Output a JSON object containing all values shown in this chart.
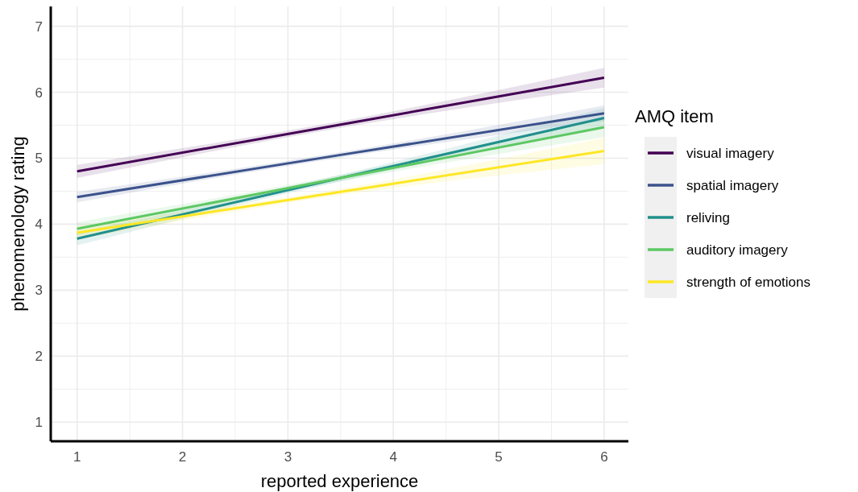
{
  "chart_data": {
    "type": "line",
    "xlabel": "reported experience",
    "ylabel": "phenomenology rating",
    "legend_title": "AMQ item",
    "legend": "right",
    "grid": true,
    "line_style": "solid",
    "marker": "none",
    "xlim": [
      0.75,
      6.23
    ],
    "ylim": [
      0.71,
      7.3
    ],
    "xticks": [
      {
        "value": 0.75,
        "label": null
      },
      {
        "value": 1.5,
        "label": null
      },
      1,
      2,
      {
        "value": 2.5,
        "label": null
      },
      3,
      {
        "value": 3.5,
        "label": null
      },
      4,
      {
        "value": 4.5,
        "label": null
      },
      5,
      {
        "value": 5.5,
        "label": null
      },
      6
    ],
    "yticks": [
      1,
      {
        "value": 1.5,
        "label": null
      },
      2,
      {
        "value": 2.5,
        "label": null
      },
      3,
      {
        "value": 3.5,
        "label": null
      },
      4,
      {
        "value": 4.5,
        "label": null
      },
      5,
      {
        "value": 5.5,
        "label": null
      },
      6,
      {
        "value": 6.5,
        "label": null
      },
      7
    ],
    "series": [
      {
        "name": "visual imagery",
        "color": "#440154",
        "x": [
          1,
          3.5,
          6
        ],
        "values": [
          4.8,
          5.51,
          6.22
        ],
        "lower": [
          4.7,
          5.46,
          6.07
        ],
        "upper": [
          4.9,
          5.56,
          6.37
        ]
      },
      {
        "name": "spatial imagery",
        "color": "#3b528b",
        "x": [
          1,
          3.5,
          6
        ],
        "values": [
          4.41,
          5.05,
          5.68
        ],
        "lower": [
          4.33,
          5.01,
          5.56
        ],
        "upper": [
          4.49,
          5.09,
          5.8
        ]
      },
      {
        "name": "reliving",
        "color": "#21908c",
        "x": [
          1,
          3.5,
          6
        ],
        "values": [
          3.78,
          4.7,
          5.61
        ],
        "lower": [
          3.68,
          4.65,
          5.46
        ],
        "upper": [
          3.88,
          4.75,
          5.76
        ]
      },
      {
        "name": "auditory imagery",
        "color": "#5dc863",
        "x": [
          1,
          3.5,
          6
        ],
        "values": [
          3.93,
          4.7,
          5.47
        ],
        "lower": [
          3.83,
          4.65,
          5.32
        ],
        "upper": [
          4.03,
          4.75,
          5.62
        ]
      },
      {
        "name": "strength of emotions",
        "color": "#fde725",
        "x": [
          1,
          3.5,
          6
        ],
        "values": [
          3.87,
          4.49,
          5.11
        ],
        "lower": [
          3.77,
          4.44,
          4.91
        ],
        "upper": [
          3.97,
          4.54,
          5.31
        ]
      }
    ]
  }
}
